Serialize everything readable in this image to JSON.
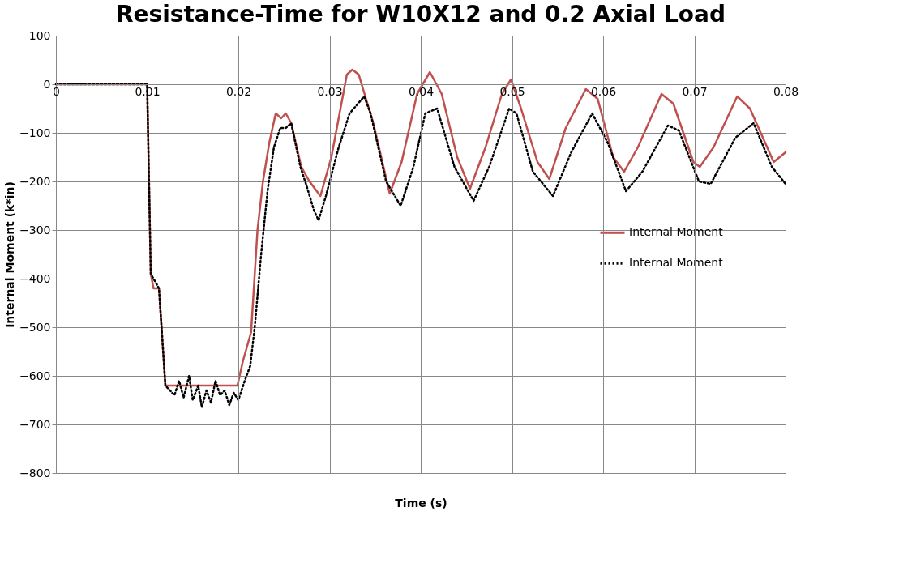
{
  "chart_data": {
    "type": "line",
    "title": "Resistance-Time for W10X12 and 0.2 Axial Load",
    "xlabel": "Time (s)",
    "ylabel": "Internal Moment (k*in)",
    "xlim": [
      0,
      0.08
    ],
    "xticks": [
      0,
      0.01,
      0.02,
      0.03,
      0.04,
      0.05,
      0.06,
      0.07,
      0.08
    ],
    "ylim": [
      -800,
      100
    ],
    "yticks": [
      -800,
      -700,
      -600,
      -500,
      -400,
      -300,
      -200,
      -100,
      0,
      100
    ],
    "grid": true,
    "legend": "right",
    "marker": "none",
    "series": [
      {
        "name": "Internal Moment",
        "color": "#c0504d",
        "line_style": "solid",
        "x": [
          0,
          0.01,
          0.0104,
          0.0107,
          0.0113,
          0.012,
          0.0199,
          0.0205,
          0.0214,
          0.0221,
          0.0227,
          0.0234,
          0.0241,
          0.0247,
          0.0252,
          0.0258,
          0.0269,
          0.0278,
          0.029,
          0.0302,
          0.0311,
          0.0319,
          0.0325,
          0.0332,
          0.0348,
          0.0366,
          0.0379,
          0.0396,
          0.041,
          0.0423,
          0.044,
          0.0454,
          0.0471,
          0.0489,
          0.0499,
          0.051,
          0.0528,
          0.0541,
          0.0559,
          0.0581,
          0.0594,
          0.0611,
          0.0623,
          0.0638,
          0.0664,
          0.0677,
          0.0699,
          0.0706,
          0.0721,
          0.0747,
          0.0761,
          0.0787,
          0.08
        ],
        "values": [
          0,
          0,
          -390,
          -420,
          -420,
          -620,
          -620,
          -570,
          -510,
          -300,
          -200,
          -120,
          -60,
          -70,
          -60,
          -80,
          -170,
          -200,
          -230,
          -150,
          -60,
          20,
          30,
          20,
          -80,
          -225,
          -160,
          -20,
          25,
          -20,
          -150,
          -215,
          -130,
          -20,
          10,
          -50,
          -160,
          -195,
          -90,
          -10,
          -30,
          -150,
          -180,
          -130,
          -20,
          -40,
          -160,
          -170,
          -130,
          -25,
          -50,
          -160,
          -140
        ]
      },
      {
        "name": "Internal Moment",
        "color": "#000000",
        "line_style": "dotted",
        "x": [
          0,
          0.01,
          0.0104,
          0.0113,
          0.012,
          0.013,
          0.0135,
          0.014,
          0.0146,
          0.015,
          0.0156,
          0.016,
          0.0165,
          0.017,
          0.0175,
          0.018,
          0.0185,
          0.019,
          0.0195,
          0.02,
          0.0207,
          0.0213,
          0.0218,
          0.0225,
          0.0232,
          0.0239,
          0.0246,
          0.0252,
          0.0258,
          0.0268,
          0.0275,
          0.0283,
          0.0288,
          0.0296,
          0.031,
          0.0322,
          0.0338,
          0.0345,
          0.0362,
          0.0378,
          0.0392,
          0.0405,
          0.0418,
          0.0437,
          0.0458,
          0.0475,
          0.0497,
          0.0505,
          0.0523,
          0.0545,
          0.0565,
          0.0588,
          0.0605,
          0.0625,
          0.0643,
          0.0671,
          0.0683,
          0.0705,
          0.0718,
          0.0745,
          0.0765,
          0.0785,
          0.08
        ],
        "values": [
          0,
          0,
          -390,
          -420,
          -620,
          -640,
          -610,
          -645,
          -600,
          -650,
          -620,
          -665,
          -630,
          -655,
          -610,
          -640,
          -630,
          -660,
          -635,
          -650,
          -610,
          -580,
          -500,
          -350,
          -220,
          -130,
          -90,
          -90,
          -80,
          -170,
          -210,
          -260,
          -280,
          -230,
          -130,
          -60,
          -25,
          -60,
          -200,
          -250,
          -170,
          -60,
          -50,
          -170,
          -240,
          -170,
          -50,
          -60,
          -180,
          -230,
          -140,
          -60,
          -120,
          -220,
          -180,
          -85,
          -95,
          -200,
          -205,
          -110,
          -80,
          -170,
          -205
        ]
      }
    ]
  }
}
